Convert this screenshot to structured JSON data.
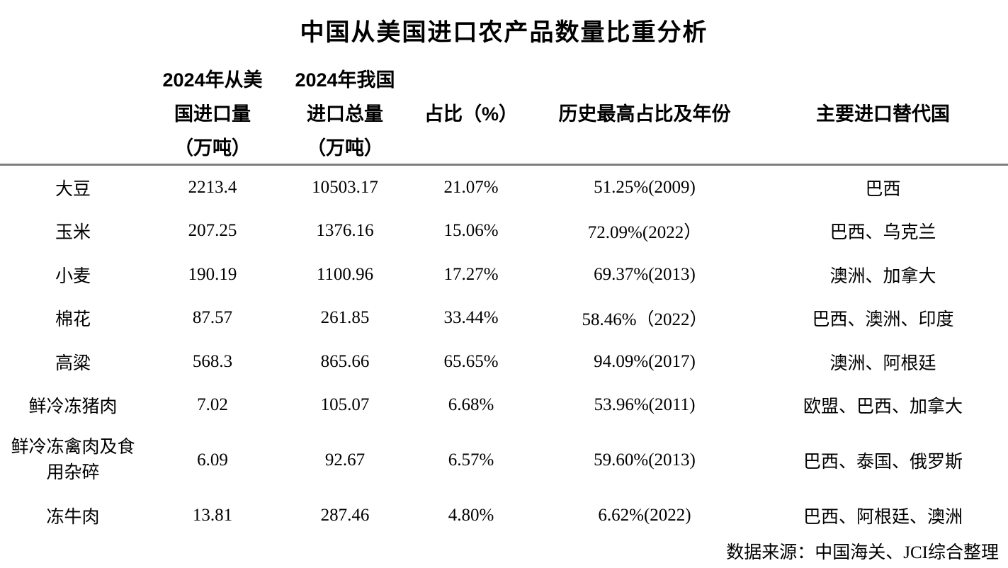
{
  "title": "中国从美国进口农产品数量比重分析",
  "header": {
    "product": "",
    "us_import_lines": [
      "2024年从美",
      "国进口量",
      "（万吨）"
    ],
    "total_import_lines": [
      "2024年我国",
      "进口总量",
      "（万吨）"
    ],
    "share": "占比（%）",
    "peak": "历史最高占比及年份",
    "substitutes": "主要进口替代国"
  },
  "footer": {
    "source": "数据来源：中国海关、JCI综合整理"
  },
  "colors": {
    "divider": "#7f7f7f",
    "text": "#000000",
    "background": "#ffffff"
  },
  "chart_data": {
    "type": "table",
    "title": "中国从美国进口农产品数量比重分析",
    "columns": [
      "",
      "2024年从美国进口量（万吨）",
      "2024年我国进口总量（万吨）",
      "占比（%）",
      "历史最高占比及年份",
      "主要进口替代国"
    ],
    "rows": [
      [
        "大豆",
        "2213.4",
        "10503.17",
        "21.07%",
        "51.25%(2009)",
        "巴西"
      ],
      [
        "玉米",
        "207.25",
        "1376.16",
        "15.06%",
        "72.09%(2022）",
        "巴西、乌克兰"
      ],
      [
        "小麦",
        "190.19",
        "1100.96",
        "17.27%",
        "69.37%(2013)",
        "澳洲、加拿大"
      ],
      [
        "棉花",
        "87.57",
        "261.85",
        "33.44%",
        "58.46%（2022）",
        "巴西、澳洲、印度"
      ],
      [
        "高粱",
        "568.3",
        "865.66",
        "65.65%",
        "94.09%(2017)",
        "澳洲、阿根廷"
      ],
      [
        "鲜冷冻猪肉",
        "7.02",
        "105.07",
        "6.68%",
        "53.96%(2011)",
        "欧盟、巴西、加拿大"
      ],
      [
        "鲜冷冻禽肉及食用杂碎",
        "6.09",
        "92.67",
        "6.57%",
        "59.60%(2013)",
        "巴西、泰国、俄罗斯"
      ],
      [
        "冻牛肉",
        "13.81",
        "287.46",
        "4.80%",
        "6.62%(2022)",
        "巴西、阿根廷、澳洲"
      ]
    ],
    "source": "数据来源：中国海关、JCI综合整理"
  }
}
